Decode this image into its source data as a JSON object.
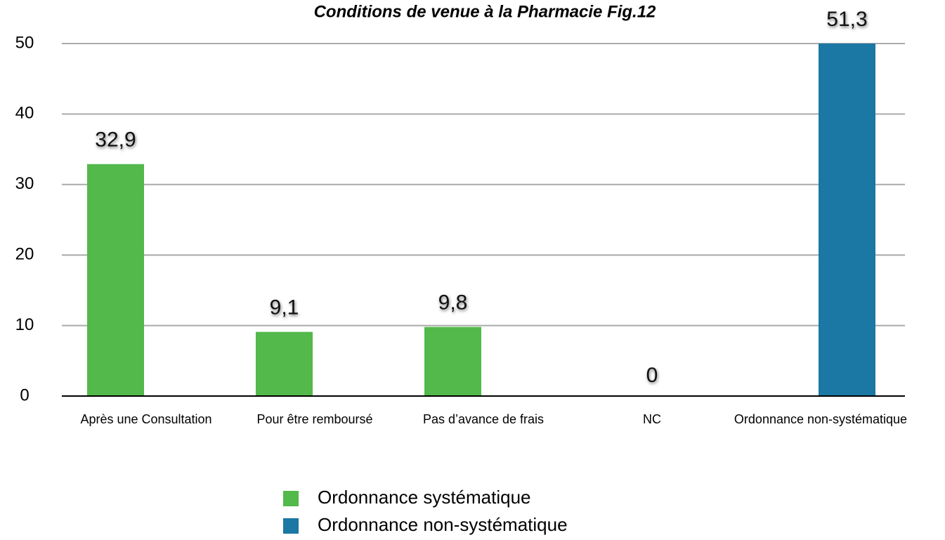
{
  "chart_data": {
    "type": "bar",
    "title": "Conditions de venue à la Pharmacie Fig.12",
    "categories": [
      "Après une Consultation",
      "Pour être remboursé",
      "Pas d’avance de frais",
      "NC",
      "Ordonnance non-systématique"
    ],
    "series": [
      {
        "name": "Ordonnance systématique",
        "color": "#52b94a",
        "values": [
          32.9,
          9.1,
          9.8,
          0,
          null
        ],
        "value_labels": [
          "32,9",
          "9,1",
          "9,8",
          "0",
          null
        ]
      },
      {
        "name": "Ordonnance non-systématique",
        "color": "#1b77a3",
        "values": [
          null,
          null,
          null,
          null,
          51.3
        ],
        "value_labels": [
          null,
          null,
          null,
          null,
          "51,3"
        ]
      }
    ],
    "ylim": [
      0,
      50
    ],
    "yticks": [
      0,
      10,
      20,
      30,
      40,
      50
    ],
    "grid": true,
    "legend": "bottom"
  }
}
